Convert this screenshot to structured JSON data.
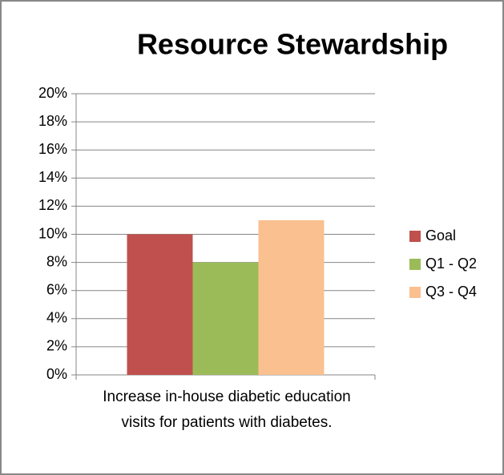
{
  "chart_data": {
    "type": "bar",
    "title": "Resource Stewardship",
    "categories": [
      "Increase in-house diabetic education visits for patients with diabetes."
    ],
    "series": [
      {
        "name": "Goal",
        "color": "#c0504d",
        "values": [
          10
        ]
      },
      {
        "name": "Q1 - Q2",
        "color": "#9bbb59",
        "values": [
          8
        ]
      },
      {
        "name": "Q3 - Q4",
        "color": "#fac090",
        "values": [
          11
        ]
      }
    ],
    "ylim": [
      0,
      20
    ],
    "yticks": [
      {
        "value": 0,
        "label": "0%"
      },
      {
        "value": 2,
        "label": "2%"
      },
      {
        "value": 4,
        "label": "4%"
      },
      {
        "value": 6,
        "label": "6%"
      },
      {
        "value": 8,
        "label": "8%"
      },
      {
        "value": 10,
        "label": "10%"
      },
      {
        "value": 12,
        "label": "12%"
      },
      {
        "value": 14,
        "label": "14%"
      },
      {
        "value": 16,
        "label": "16%"
      },
      {
        "value": 18,
        "label": "18%"
      },
      {
        "value": 20,
        "label": "20%"
      }
    ],
    "grid": true,
    "legend": "right"
  }
}
